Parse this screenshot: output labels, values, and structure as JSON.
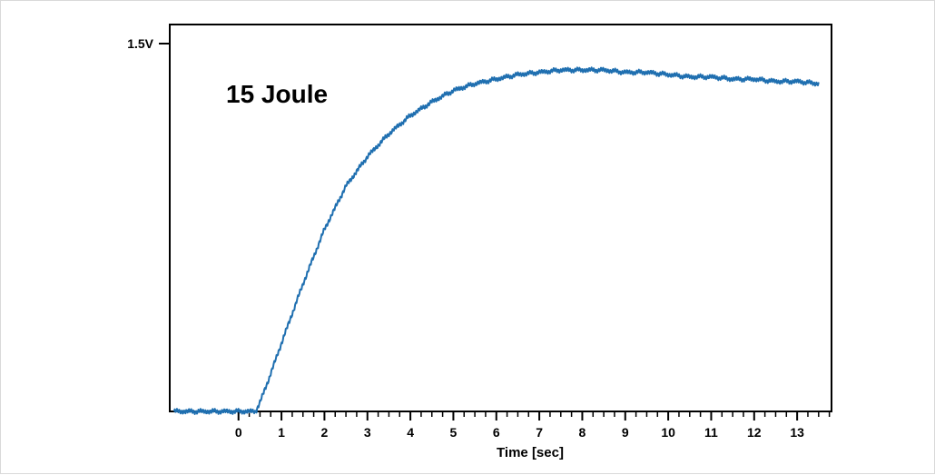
{
  "chart_data": {
    "type": "line",
    "annotation": "15 Joule",
    "xlabel": "Time [sec]",
    "ylabel": "",
    "y_tick_label": "1.5V",
    "y_tick_value": 1.5,
    "xlim": [
      -1.6,
      13.8
    ],
    "ylim": [
      0,
      1.7
    ],
    "x_ticks": [
      "0",
      "1",
      "2",
      "3",
      "4",
      "5",
      "6",
      "7",
      "8",
      "9",
      "10",
      "11",
      "12",
      "13"
    ],
    "x_tick_values": [
      0,
      1,
      2,
      3,
      4,
      5,
      6,
      7,
      8,
      9,
      10,
      11,
      12,
      13
    ],
    "grid": false,
    "line_color": "#1f6fb0",
    "series": [
      {
        "x": [
          -1.5,
          -1,
          -0.5,
          0,
          0.4,
          0.5,
          0.7,
          1,
          1.5,
          2,
          2.5,
          3,
          3.5,
          4,
          4.5,
          5,
          5.5,
          6,
          6.5,
          7,
          7.5,
          8,
          8.5,
          9,
          9.5,
          10,
          10.5,
          11,
          11.5,
          12,
          12.5,
          13,
          13.5
        ],
        "values": [
          0.0,
          0.0,
          0.0,
          0.0,
          0.0,
          0.04,
          0.14,
          0.3,
          0.56,
          0.8,
          0.99,
          1.12,
          1.22,
          1.3,
          1.36,
          1.41,
          1.44,
          1.46,
          1.48,
          1.49,
          1.5,
          1.5,
          1.5,
          1.49,
          1.49,
          1.48,
          1.47,
          1.47,
          1.46,
          1.46,
          1.45,
          1.45,
          1.44
        ]
      }
    ]
  }
}
